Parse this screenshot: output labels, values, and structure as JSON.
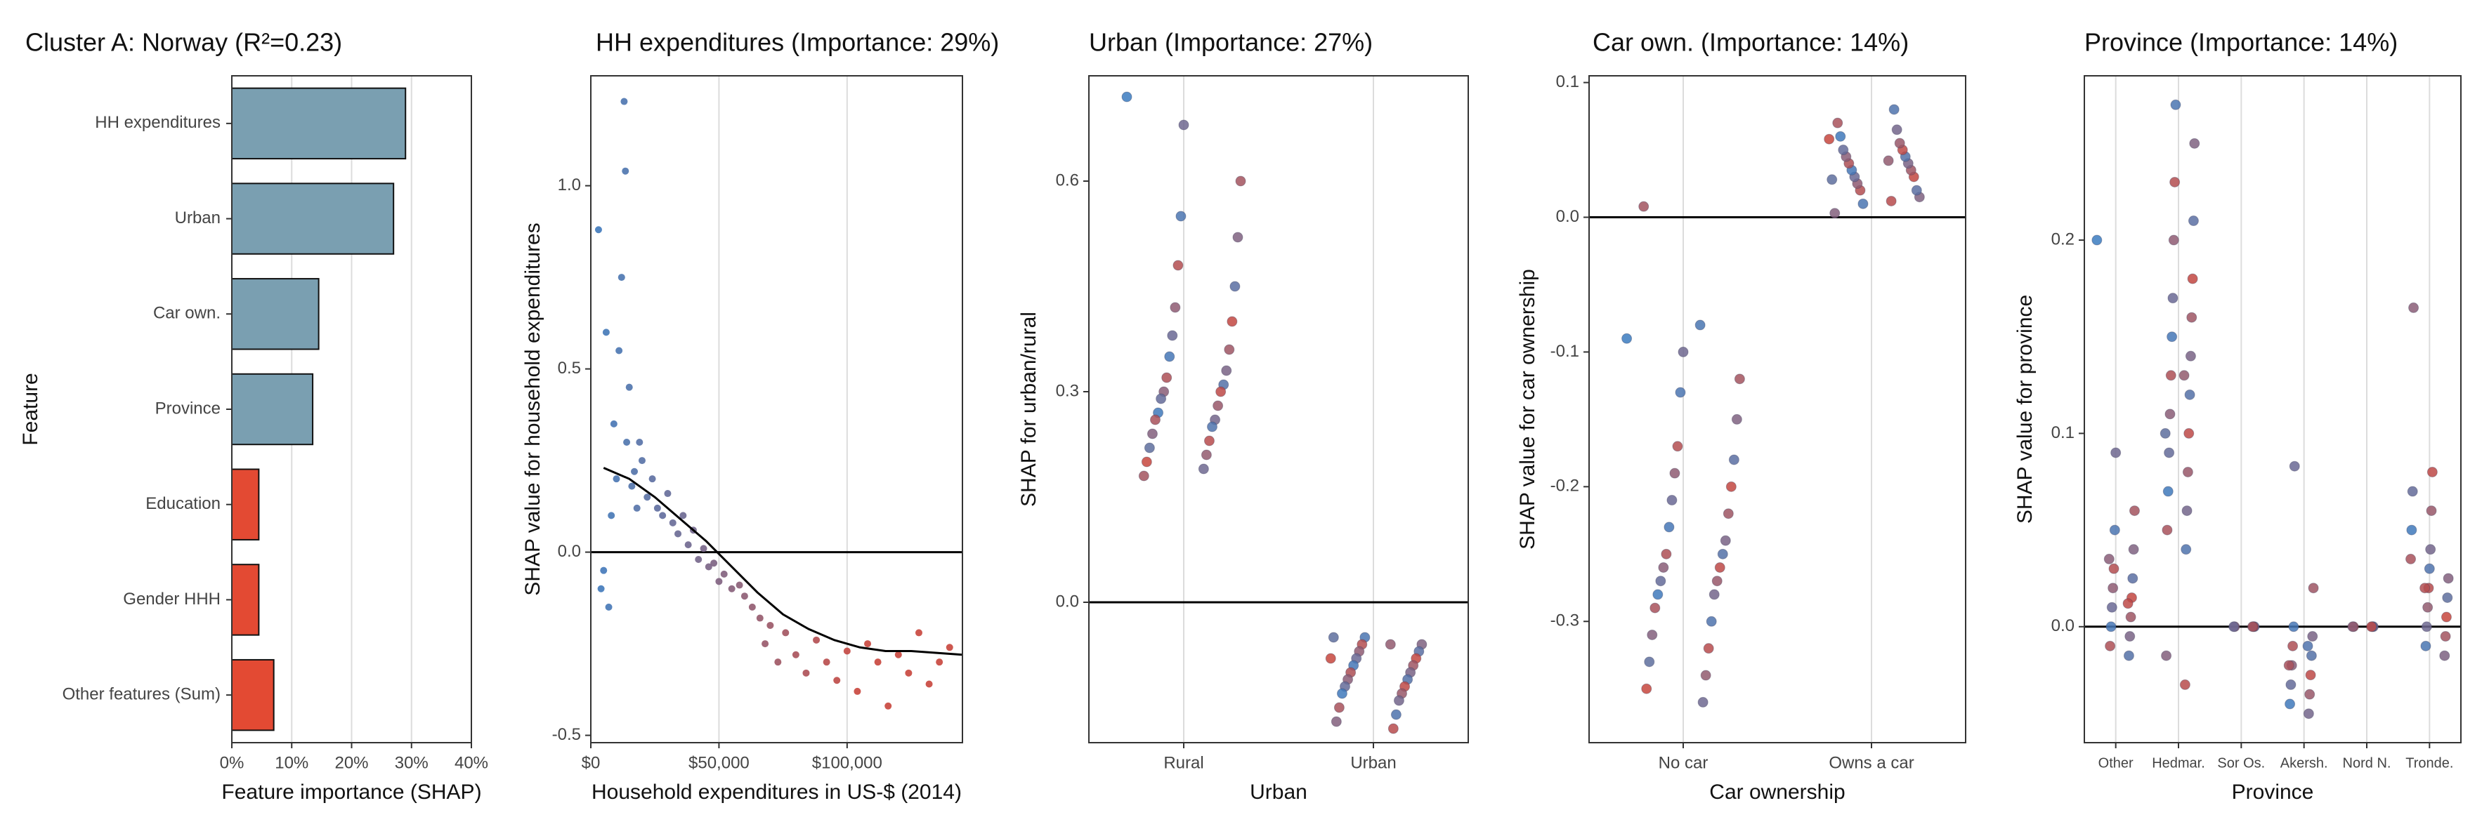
{
  "chart_data": [
    {
      "type": "bar",
      "title": "Cluster A: Norway (R²=0.23)",
      "xlabel": "Feature importance (SHAP)",
      "ylabel": "Feature",
      "categories": [
        "HH expenditures",
        "Urban",
        "Car own.",
        "Province",
        "Education",
        "Gender HHH",
        "Other features (Sum)"
      ],
      "values": [
        29,
        27,
        14.5,
        13.5,
        4.5,
        4.5,
        7
      ],
      "colors": [
        "#7a9fb1",
        "#7a9fb1",
        "#7a9fb1",
        "#7a9fb1",
        "#e34a33",
        "#e34a33",
        "#e34a33"
      ],
      "xlim": [
        0,
        40
      ],
      "xticks": [
        {
          "value": 0,
          "label": "0%"
        },
        {
          "value": 10,
          "label": "10%"
        },
        {
          "value": 20,
          "label": "20%"
        },
        {
          "value": 30,
          "label": "30%"
        },
        {
          "value": 40,
          "label": "40%"
        }
      ],
      "grid": true
    },
    {
      "type": "scatter",
      "title": "HH expenditures (Importance: 29%)",
      "xlabel": "Household expenditures in US-$ (2014)",
      "ylabel": "SHAP value for household expenditures",
      "x": [
        3000,
        5000,
        6000,
        8000,
        9000,
        10000,
        11000,
        12000,
        13000,
        13500,
        14000,
        15000,
        16000,
        17000,
        18000,
        19000,
        20000,
        22000,
        24000,
        26000,
        28000,
        30000,
        32000,
        34000,
        36000,
        38000,
        40000,
        42000,
        44000,
        46000,
        48000,
        50000,
        52000,
        55000,
        58000,
        60000,
        63000,
        66000,
        68000,
        70000,
        73000,
        76000,
        80000,
        84000,
        88000,
        92000,
        96000,
        100000,
        104000,
        108000,
        112000,
        116000,
        120000,
        124000,
        128000,
        132000,
        136000,
        140000,
        4000,
        7000
      ],
      "y": [
        0.88,
        -0.05,
        0.6,
        0.1,
        0.35,
        0.2,
        0.55,
        0.75,
        1.23,
        1.04,
        0.3,
        0.45,
        0.18,
        0.22,
        0.12,
        0.3,
        0.25,
        0.15,
        0.2,
        0.12,
        0.1,
        0.16,
        0.08,
        0.05,
        0.1,
        0.02,
        0.06,
        -0.02,
        0.01,
        -0.04,
        -0.03,
        -0.08,
        -0.06,
        -0.1,
        -0.09,
        -0.12,
        -0.15,
        -0.18,
        -0.25,
        -0.2,
        -0.3,
        -0.22,
        -0.28,
        -0.33,
        -0.24,
        -0.3,
        -0.35,
        -0.27,
        -0.38,
        -0.25,
        -0.3,
        -0.42,
        -0.28,
        -0.33,
        -0.22,
        -0.36,
        -0.3,
        -0.26,
        -0.1,
        -0.15
      ],
      "trend": {
        "x": [
          5000,
          15000,
          25000,
          35000,
          45000,
          55000,
          65000,
          75000,
          85000,
          95000,
          105000,
          115000,
          125000,
          135000,
          145000
        ],
        "y": [
          0.23,
          0.2,
          0.15,
          0.09,
          0.03,
          -0.04,
          -0.11,
          -0.17,
          -0.21,
          -0.24,
          -0.26,
          -0.27,
          -0.27,
          -0.275,
          -0.28
        ]
      },
      "reference_line": 0,
      "colors": [
        "#3b7bbf",
        "#c8453c"
      ],
      "xlim": [
        0,
        145000
      ],
      "xticks": [
        {
          "value": 0,
          "label": "$0"
        },
        {
          "value": 50000,
          "label": "$50,000"
        },
        {
          "value": 100000,
          "label": "$100,000"
        }
      ],
      "ylim": [
        -0.52,
        1.3
      ],
      "yticks": [
        {
          "value": -0.5,
          "label": "-0.5"
        },
        {
          "value": 0,
          "label": "0.0"
        },
        0.5,
        {
          "value": 1,
          "label": "1.0"
        }
      ],
      "grid": true
    },
    {
      "type": "strip",
      "title": "Urban (Importance: 27%)",
      "xlabel": "Urban",
      "ylabel": "SHAP for urban/rural",
      "categories": [
        "Rural",
        "Urban"
      ],
      "series": [
        {
          "values": [
            0.72,
            0.68,
            0.6,
            0.55,
            0.52,
            0.48,
            0.45,
            0.42,
            0.4,
            0.38,
            0.36,
            0.35,
            0.33,
            0.32,
            0.31,
            0.3,
            0.3,
            0.29,
            0.28,
            0.27,
            0.26,
            0.26,
            0.25,
            0.24,
            0.23,
            0.22,
            0.21,
            0.2,
            0.19,
            0.18
          ]
        },
        {
          "values": [
            -0.05,
            -0.06,
            -0.06,
            -0.07,
            -0.07,
            -0.08,
            -0.08,
            -0.09,
            -0.09,
            -0.1,
            -0.1,
            -0.11,
            -0.11,
            -0.12,
            -0.12,
            -0.13,
            -0.13,
            -0.14,
            -0.15,
            -0.16,
            -0.17,
            -0.18,
            -0.05,
            -0.06,
            -0.08
          ]
        }
      ],
      "reference_line": 0,
      "colors": [
        "#3b7bbf",
        "#c8453c"
      ],
      "ylim": [
        -0.2,
        0.75
      ],
      "yticks": [
        {
          "value": 0,
          "label": "0.0"
        },
        0.3,
        0.6
      ],
      "grid": true
    },
    {
      "type": "strip",
      "title": "Car own. (Importance: 14%)",
      "xlabel": "Car ownership",
      "ylabel": "SHAP value for car ownership",
      "categories": [
        "No car",
        "Owns a car"
      ],
      "series": [
        {
          "values": [
            -0.09,
            -0.1,
            -0.12,
            -0.13,
            -0.15,
            -0.17,
            -0.18,
            -0.19,
            -0.2,
            -0.21,
            -0.22,
            -0.23,
            -0.24,
            -0.25,
            -0.25,
            -0.26,
            -0.26,
            -0.27,
            -0.27,
            -0.28,
            -0.28,
            -0.29,
            -0.3,
            -0.31,
            -0.32,
            -0.33,
            -0.34,
            -0.35,
            -0.36,
            0.008,
            -0.08
          ]
        },
        {
          "values": [
            0.01,
            0.015,
            0.02,
            0.02,
            0.025,
            0.03,
            0.03,
            0.035,
            0.035,
            0.04,
            0.04,
            0.045,
            0.045,
            0.05,
            0.05,
            0.055,
            0.06,
            0.065,
            0.07,
            0.08,
            0.003,
            0.012,
            0.028,
            0.042,
            0.058
          ]
        }
      ],
      "reference_line": 0,
      "colors": [
        "#3b7bbf",
        "#c8453c"
      ],
      "ylim": [
        -0.39,
        0.105
      ],
      "yticks": [
        -0.3,
        -0.2,
        -0.1,
        {
          "value": 0,
          "label": "0.0"
        },
        0.1
      ],
      "grid": true
    },
    {
      "type": "strip",
      "title": "Province (Importance: 14%)",
      "xlabel": "Province",
      "ylabel": "SHAP value for province",
      "categories": [
        "Other",
        "Hedmar.",
        "Sor Os.",
        "Akersh.",
        "Nord N.",
        "Tronde."
      ],
      "series": [
        {
          "values": [
            0.2,
            0.09,
            0.06,
            0.05,
            0.04,
            0.03,
            0.025,
            0.02,
            0.015,
            0.01,
            0.005,
            0.0,
            -0.005,
            -0.01,
            -0.015,
            0.035,
            0.012
          ]
        },
        {
          "values": [
            0.27,
            0.25,
            0.23,
            0.21,
            0.2,
            0.18,
            0.17,
            0.16,
            0.15,
            0.14,
            0.13,
            0.12,
            0.11,
            0.1,
            0.09,
            0.08,
            0.07,
            0.06,
            0.05,
            0.04,
            -0.015,
            -0.03,
            0.1,
            0.13
          ]
        },
        {
          "values": [
            0,
            0,
            0,
            0,
            0
          ]
        },
        {
          "values": [
            0.083,
            0.02,
            0.0,
            -0.005,
            -0.01,
            -0.015,
            -0.02,
            -0.025,
            -0.03,
            -0.035,
            -0.04,
            -0.045,
            -0.02,
            -0.01
          ]
        },
        {
          "values": [
            0,
            0,
            0,
            0,
            0
          ]
        },
        {
          "values": [
            0.165,
            0.08,
            0.07,
            0.06,
            0.05,
            0.04,
            0.035,
            0.03,
            0.025,
            0.02,
            0.015,
            0.01,
            0.005,
            0.0,
            -0.005,
            -0.01,
            -0.015,
            0.02
          ]
        }
      ],
      "reference_line": 0,
      "colors": [
        "#3b7bbf",
        "#c8453c"
      ],
      "ylim": [
        -0.06,
        0.285
      ],
      "yticks": [
        {
          "value": 0,
          "label": "0.0"
        },
        0.1,
        0.2
      ],
      "grid": true
    }
  ]
}
